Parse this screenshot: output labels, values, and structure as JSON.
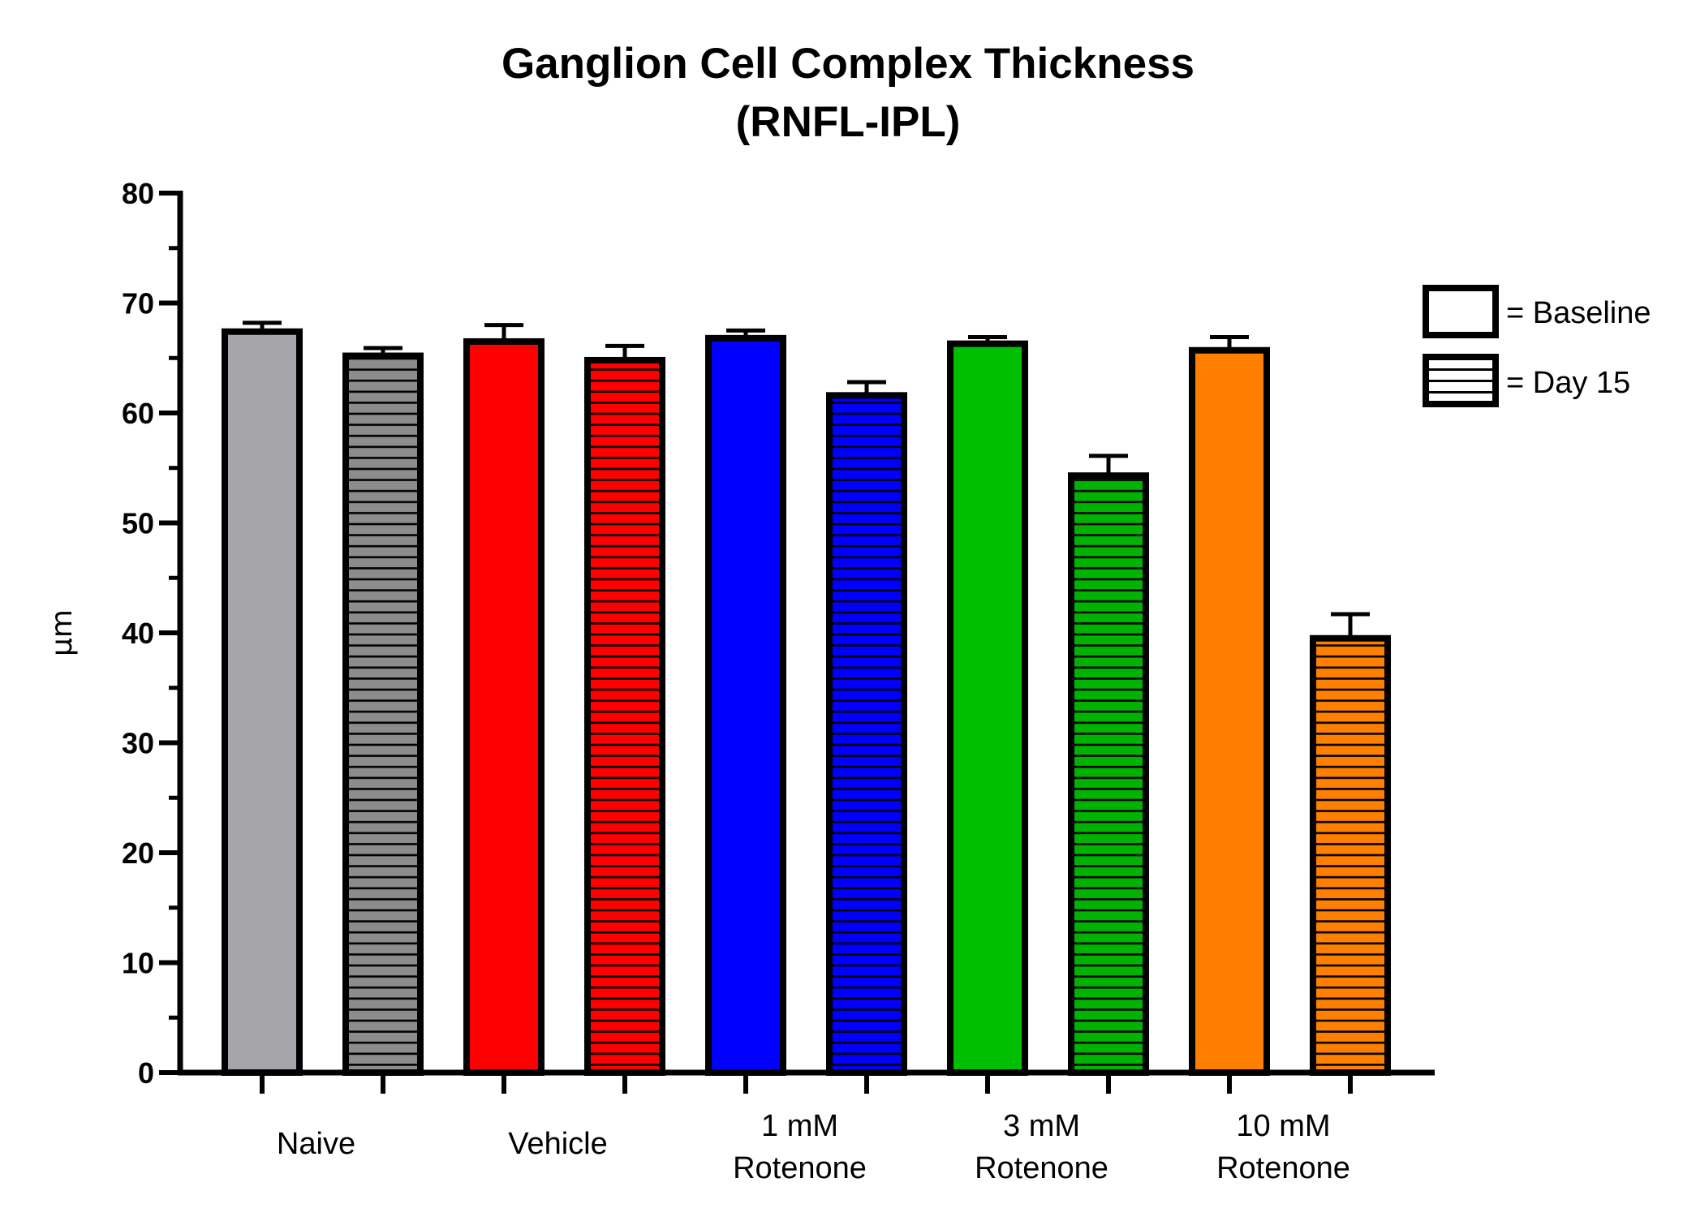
{
  "chart_data": {
    "type": "bar",
    "title": [
      "Ganglion Cell Complex Thickness",
      "(RNFL-IPL)"
    ],
    "ylabel": "µm",
    "ylim": [
      0,
      80
    ],
    "yticks": [
      "0",
      "10",
      "20",
      "30",
      "40",
      "50",
      "60",
      "70",
      "80"
    ],
    "grid": false,
    "categories": [
      [
        "Naive"
      ],
      [
        "Vehicle"
      ],
      [
        "1 mM",
        "Rotenone"
      ],
      [
        "3 mM",
        "Rotenone"
      ],
      [
        "10 mM",
        "Rotenone"
      ]
    ],
    "colors": [
      "#a6a6aa",
      "#ff0000",
      "#0000ff",
      "#00bf00",
      "#ff8000"
    ],
    "day15_colors": [
      "#8c8c8c",
      "#ff0000",
      "#0000ff",
      "#00b300",
      "#ff8000"
    ],
    "series": [
      {
        "name": "Baseline",
        "pattern": "solid",
        "values": [
          67.4,
          66.5,
          66.8,
          66.3,
          65.7
        ],
        "errors": [
          0.8,
          1.5,
          0.7,
          0.6,
          1.2
        ]
      },
      {
        "name": "Day 15",
        "pattern": "horizontal-lines",
        "values": [
          65.2,
          64.8,
          61.6,
          54.3,
          39.5
        ],
        "errors": [
          0.7,
          1.3,
          1.2,
          1.8,
          2.2
        ]
      }
    ],
    "legend": {
      "position": "right",
      "entries": [
        "= Baseline",
        "= Day 15"
      ]
    }
  }
}
